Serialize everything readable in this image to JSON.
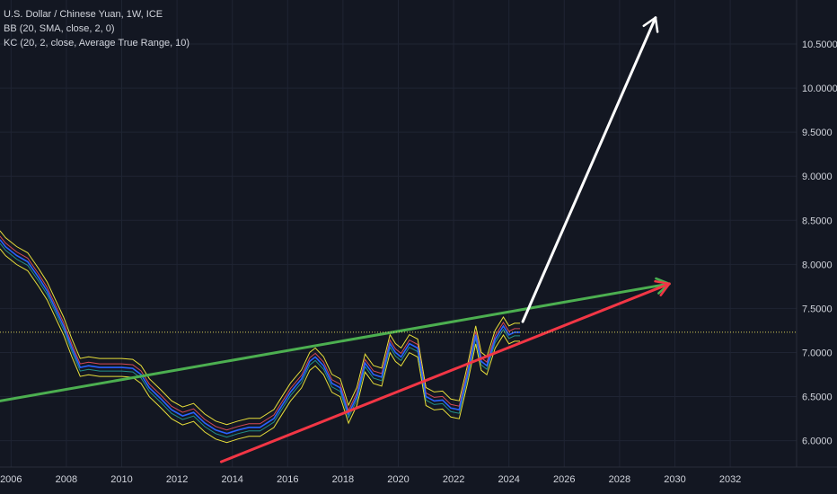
{
  "legend": {
    "symbol_line": "U.S. Dollar / Chinese Yuan, 1W, ICE",
    "bb_line": "BB (20, SMA, close, 2, 0)",
    "kc_line": "KC (20, 2, close, Average True Range, 10)"
  },
  "colors": {
    "background": "#131722",
    "grid": "#1f2433",
    "axis_text": "#d1d4dc",
    "green_line": "#4caf50",
    "red_line": "#f23645",
    "white_arrow": "#ffffff",
    "price_series": "#2962ff",
    "keltner": "#e8df3a",
    "bb_mid": "#f7525f",
    "current_price_line": "#d8cf5a"
  },
  "chart_data": {
    "type": "line",
    "title": "U.S. Dollar / Chinese Yuan, 1W, ICE",
    "xlabel": "",
    "ylabel": "",
    "x_ticks": [
      "2006",
      "2008",
      "2010",
      "2012",
      "2014",
      "2016",
      "2018",
      "2020",
      "2022",
      "2024",
      "2026",
      "2028",
      "2030",
      "2032"
    ],
    "y_ticks": [
      "6.0000",
      "6.5000",
      "7.0000",
      "7.5000",
      "8.0000",
      "8.5000",
      "9.0000",
      "9.5000",
      "10.0000",
      "10.5000"
    ],
    "xlim": [
      2005.6,
      2034.4
    ],
    "ylim": [
      5.7,
      11.0
    ],
    "grid": true,
    "current_price": 7.23,
    "series": [
      {
        "role": "price",
        "x": [
          2005.6,
          2005.8,
          2006.2,
          2006.6,
          2007.0,
          2007.3,
          2007.6,
          2007.9,
          2008.2,
          2008.5,
          2008.8,
          2009.2,
          2009.6,
          2010.0,
          2010.4,
          2010.7,
          2011.0,
          2011.4,
          2011.8,
          2012.2,
          2012.6,
          2013.0,
          2013.4,
          2013.8,
          2014.2,
          2014.6,
          2015.0,
          2015.5,
          2015.8,
          2016.1,
          2016.5,
          2016.8,
          2017.0,
          2017.3,
          2017.6,
          2017.9,
          2018.2,
          2018.5,
          2018.8,
          2019.1,
          2019.4,
          2019.7,
          2019.9,
          2020.1,
          2020.4,
          2020.7,
          2021.0,
          2021.3,
          2021.6,
          2021.9,
          2022.2,
          2022.5,
          2022.8,
          2023.0,
          2023.2,
          2023.5,
          2023.8,
          2024.0,
          2024.2,
          2024.4
        ],
        "y": [
          8.28,
          8.2,
          8.1,
          8.03,
          7.85,
          7.7,
          7.5,
          7.3,
          7.05,
          6.83,
          6.85,
          6.83,
          6.83,
          6.83,
          6.82,
          6.75,
          6.6,
          6.48,
          6.35,
          6.28,
          6.32,
          6.2,
          6.12,
          6.08,
          6.12,
          6.15,
          6.15,
          6.25,
          6.4,
          6.55,
          6.7,
          6.9,
          6.95,
          6.85,
          6.65,
          6.6,
          6.3,
          6.5,
          6.88,
          6.75,
          6.72,
          7.1,
          7.0,
          6.95,
          7.1,
          7.05,
          6.5,
          6.45,
          6.46,
          6.37,
          6.35,
          6.75,
          7.2,
          6.9,
          6.85,
          7.15,
          7.3,
          7.2,
          7.23,
          7.23
        ]
      }
    ],
    "trendlines": [
      {
        "role": "green-resistance",
        "x": [
          2005.6,
          2029.8
        ],
        "y": [
          6.45,
          7.78
        ]
      },
      {
        "role": "red-support",
        "x": [
          2013.6,
          2029.8
        ],
        "y": [
          5.76,
          7.78
        ]
      },
      {
        "role": "white-projection-arrow",
        "x": [
          2024.5,
          2029.3
        ],
        "y": [
          7.35,
          10.8
        ]
      }
    ]
  }
}
